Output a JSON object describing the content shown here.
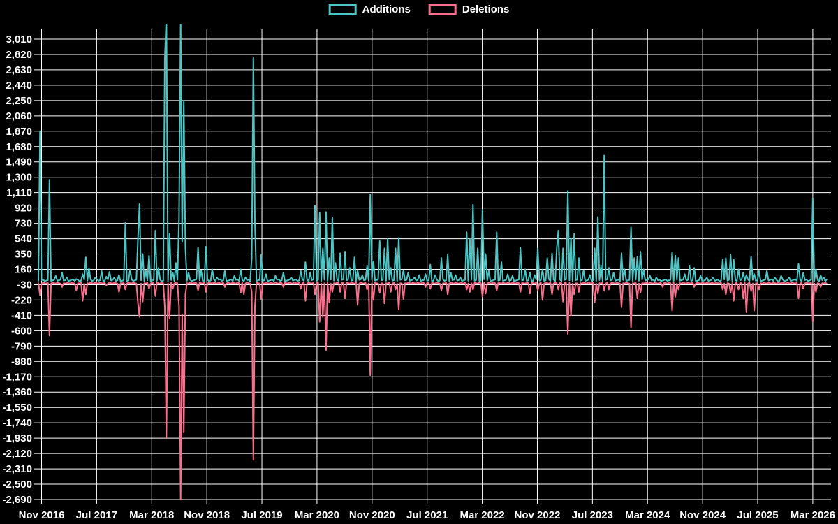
{
  "page": {
    "background": "#000000",
    "text_color": "#ffffff",
    "grid_color": "#ffffff"
  },
  "legend": {
    "items": [
      {
        "label": "Additions",
        "color": "#4ec4c4"
      },
      {
        "label": "Deletions",
        "color": "#f9708c"
      }
    ]
  },
  "chart_data": {
    "type": "line",
    "title": "",
    "xlabel": "",
    "ylabel": "",
    "grid": true,
    "legend_position": "top-center",
    "x_tick_labels": [
      "Nov 2016",
      "Jul 2017",
      "Mar 2018",
      "Nov 2018",
      "Jul 2019",
      "Mar 2020",
      "Nov 2020",
      "Jul 2021",
      "Mar 2022",
      "Nov 2022",
      "Jul 2023",
      "Mar 2024",
      "Nov 2024",
      "Jul 2025",
      "Mar 2026"
    ],
    "y_tick_labels": [
      "3,010",
      "2,820",
      "2,630",
      "2,440",
      "2,250",
      "2,060",
      "1,870",
      "1,680",
      "1,490",
      "1,300",
      "1,110",
      "920",
      "730",
      "540",
      "350",
      "160",
      "-30",
      "-220",
      "-410",
      "-600",
      "-790",
      "-980",
      "-1,170",
      "-1,360",
      "-1,550",
      "-1,740",
      "-1,930",
      "-2,120",
      "-2,310",
      "-2,500",
      "-2,690"
    ],
    "ylim": [
      -2690,
      3010
    ],
    "y_step": 190,
    "weeks": 500,
    "series": [
      {
        "name": "Additions",
        "color": "#4ec4c4",
        "baseline": {
          "base": 12,
          "step": 7,
          "range": 26,
          "sign": 1
        },
        "spikes": [
          [
            1,
            1870
          ],
          [
            7,
            1270
          ],
          [
            11,
            80
          ],
          [
            15,
            120
          ],
          [
            18,
            60
          ],
          [
            24,
            40
          ],
          [
            28,
            100
          ],
          [
            30,
            310
          ],
          [
            32,
            170
          ],
          [
            36,
            60
          ],
          [
            40,
            140
          ],
          [
            43,
            70
          ],
          [
            45,
            130
          ],
          [
            48,
            60
          ],
          [
            51,
            90
          ],
          [
            55,
            735
          ],
          [
            58,
            160
          ],
          [
            63,
            545
          ],
          [
            64,
            970
          ],
          [
            66,
            350
          ],
          [
            68,
            140
          ],
          [
            70,
            330
          ],
          [
            74,
            640
          ],
          [
            76,
            180
          ],
          [
            80,
            2770
          ],
          [
            81,
            3300
          ],
          [
            83,
            600
          ],
          [
            85,
            120
          ],
          [
            87,
            240
          ],
          [
            89,
            800
          ],
          [
            90,
            3250
          ],
          [
            91,
            500
          ],
          [
            92,
            2250
          ],
          [
            93,
            420
          ],
          [
            95,
            120
          ],
          [
            101,
            430
          ],
          [
            103,
            150
          ],
          [
            106,
            440
          ],
          [
            110,
            160
          ],
          [
            113,
            60
          ],
          [
            118,
            140
          ],
          [
            124,
            80
          ],
          [
            128,
            160
          ],
          [
            131,
            60
          ],
          [
            135,
            300
          ],
          [
            136,
            2780
          ],
          [
            137,
            740
          ],
          [
            141,
            340
          ],
          [
            144,
            100
          ],
          [
            150,
            80
          ],
          [
            155,
            120
          ],
          [
            160,
            60
          ],
          [
            166,
            140
          ],
          [
            169,
            250
          ],
          [
            172,
            120
          ],
          [
            175,
            950
          ],
          [
            178,
            860
          ],
          [
            180,
            420
          ],
          [
            182,
            870
          ],
          [
            184,
            300
          ],
          [
            186,
            800
          ],
          [
            188,
            240
          ],
          [
            191,
            360
          ],
          [
            194,
            380
          ],
          [
            197,
            180
          ],
          [
            200,
            310
          ],
          [
            202,
            150
          ],
          [
            205,
            90
          ],
          [
            208,
            200
          ],
          [
            210,
            1090
          ],
          [
            212,
            260
          ],
          [
            216,
            510
          ],
          [
            219,
            420
          ],
          [
            221,
            540
          ],
          [
            223,
            180
          ],
          [
            226,
            420
          ],
          [
            228,
            550
          ],
          [
            231,
            150
          ],
          [
            234,
            120
          ],
          [
            238,
            60
          ],
          [
            241,
            90
          ],
          [
            245,
            100
          ],
          [
            248,
            220
          ],
          [
            251,
            90
          ],
          [
            255,
            300
          ],
          [
            259,
            340
          ],
          [
            261,
            120
          ],
          [
            264,
            90
          ],
          [
            267,
            60
          ],
          [
            271,
            620
          ],
          [
            273,
            540
          ],
          [
            275,
            960
          ],
          [
            278,
            420
          ],
          [
            281,
            900
          ],
          [
            283,
            350
          ],
          [
            285,
            150
          ],
          [
            290,
            620
          ],
          [
            293,
            250
          ],
          [
            297,
            100
          ],
          [
            300,
            80
          ],
          [
            305,
            430
          ],
          [
            308,
            160
          ],
          [
            311,
            120
          ],
          [
            314,
            90
          ],
          [
            316,
            420
          ],
          [
            319,
            160
          ],
          [
            322,
            300
          ],
          [
            325,
            360
          ],
          [
            328,
            420
          ],
          [
            329,
            640
          ],
          [
            332,
            420
          ],
          [
            335,
            1130
          ],
          [
            337,
            550
          ],
          [
            339,
            600
          ],
          [
            342,
            300
          ],
          [
            345,
            150
          ],
          [
            349,
            90
          ],
          [
            352,
            420
          ],
          [
            354,
            810
          ],
          [
            356,
            200
          ],
          [
            358,
            1570
          ],
          [
            361,
            180
          ],
          [
            364,
            120
          ],
          [
            369,
            360
          ],
          [
            371,
            160
          ],
          [
            375,
            680
          ],
          [
            377,
            300
          ],
          [
            379,
            320
          ],
          [
            381,
            380
          ],
          [
            383,
            160
          ],
          [
            387,
            80
          ],
          [
            391,
            60
          ],
          [
            401,
            370
          ],
          [
            403,
            330
          ],
          [
            405,
            300
          ],
          [
            409,
            100
          ],
          [
            412,
            200
          ],
          [
            415,
            180
          ],
          [
            419,
            80
          ],
          [
            423,
            60
          ],
          [
            427,
            60
          ],
          [
            433,
            280
          ],
          [
            435,
            300
          ],
          [
            438,
            340
          ],
          [
            440,
            280
          ],
          [
            443,
            160
          ],
          [
            446,
            120
          ],
          [
            448,
            90
          ],
          [
            451,
            320
          ],
          [
            453,
            100
          ],
          [
            456,
            140
          ],
          [
            461,
            140
          ],
          [
            466,
            60
          ],
          [
            470,
            80
          ],
          [
            475,
            60
          ],
          [
            481,
            230
          ],
          [
            484,
            120
          ],
          [
            490,
            1040
          ],
          [
            492,
            160
          ],
          [
            495,
            90
          ],
          [
            497,
            60
          ],
          [
            499,
            40
          ]
        ]
      },
      {
        "name": "Deletions",
        "color": "#f9708c",
        "baseline": {
          "base": 5,
          "step": 5,
          "range": 15,
          "sign": -1
        },
        "spikes": [
          [
            1,
            -160
          ],
          [
            7,
            -660
          ],
          [
            15,
            -60
          ],
          [
            24,
            -100
          ],
          [
            28,
            -230
          ],
          [
            30,
            -150
          ],
          [
            43,
            -40
          ],
          [
            51,
            -120
          ],
          [
            55,
            -90
          ],
          [
            63,
            -260
          ],
          [
            64,
            -430
          ],
          [
            66,
            -240
          ],
          [
            70,
            -80
          ],
          [
            74,
            -170
          ],
          [
            80,
            -300
          ],
          [
            81,
            -1930
          ],
          [
            83,
            -450
          ],
          [
            85,
            -80
          ],
          [
            89,
            -300
          ],
          [
            90,
            -2690
          ],
          [
            91,
            -400
          ],
          [
            92,
            -1860
          ],
          [
            93,
            -150
          ],
          [
            101,
            -100
          ],
          [
            106,
            -120
          ],
          [
            118,
            -60
          ],
          [
            128,
            -130
          ],
          [
            130,
            -150
          ],
          [
            135,
            -120
          ],
          [
            136,
            -2200
          ],
          [
            137,
            -300
          ],
          [
            141,
            -210
          ],
          [
            155,
            -60
          ],
          [
            166,
            -80
          ],
          [
            169,
            -230
          ],
          [
            175,
            -150
          ],
          [
            178,
            -490
          ],
          [
            180,
            -430
          ],
          [
            182,
            -840
          ],
          [
            184,
            -250
          ],
          [
            186,
            -120
          ],
          [
            191,
            -120
          ],
          [
            194,
            -200
          ],
          [
            202,
            -280
          ],
          [
            208,
            -90
          ],
          [
            210,
            -1150
          ],
          [
            212,
            -220
          ],
          [
            216,
            -130
          ],
          [
            219,
            -260
          ],
          [
            223,
            -120
          ],
          [
            226,
            -90
          ],
          [
            228,
            -340
          ],
          [
            231,
            -210
          ],
          [
            245,
            -60
          ],
          [
            248,
            -80
          ],
          [
            255,
            -100
          ],
          [
            259,
            -150
          ],
          [
            271,
            -90
          ],
          [
            273,
            -120
          ],
          [
            275,
            -90
          ],
          [
            281,
            -180
          ],
          [
            283,
            -140
          ],
          [
            290,
            -100
          ],
          [
            305,
            -120
          ],
          [
            311,
            -140
          ],
          [
            316,
            -100
          ],
          [
            319,
            -220
          ],
          [
            325,
            -150
          ],
          [
            329,
            -90
          ],
          [
            332,
            -240
          ],
          [
            335,
            -640
          ],
          [
            337,
            -420
          ],
          [
            339,
            -150
          ],
          [
            342,
            -120
          ],
          [
            352,
            -250
          ],
          [
            354,
            -140
          ],
          [
            358,
            -100
          ],
          [
            361,
            -90
          ],
          [
            369,
            -310
          ],
          [
            375,
            -560
          ],
          [
            379,
            -200
          ],
          [
            381,
            -130
          ],
          [
            395,
            -60
          ],
          [
            401,
            -350
          ],
          [
            403,
            -180
          ],
          [
            405,
            -90
          ],
          [
            415,
            -60
          ],
          [
            433,
            -90
          ],
          [
            435,
            -150
          ],
          [
            438,
            -130
          ],
          [
            440,
            -230
          ],
          [
            443,
            -90
          ],
          [
            446,
            -200
          ],
          [
            448,
            -370
          ],
          [
            451,
            -110
          ],
          [
            453,
            -350
          ],
          [
            456,
            -90
          ],
          [
            481,
            -200
          ],
          [
            484,
            -80
          ],
          [
            490,
            -490
          ],
          [
            492,
            -120
          ],
          [
            495,
            -60
          ],
          [
            499,
            -20
          ]
        ]
      }
    ]
  }
}
